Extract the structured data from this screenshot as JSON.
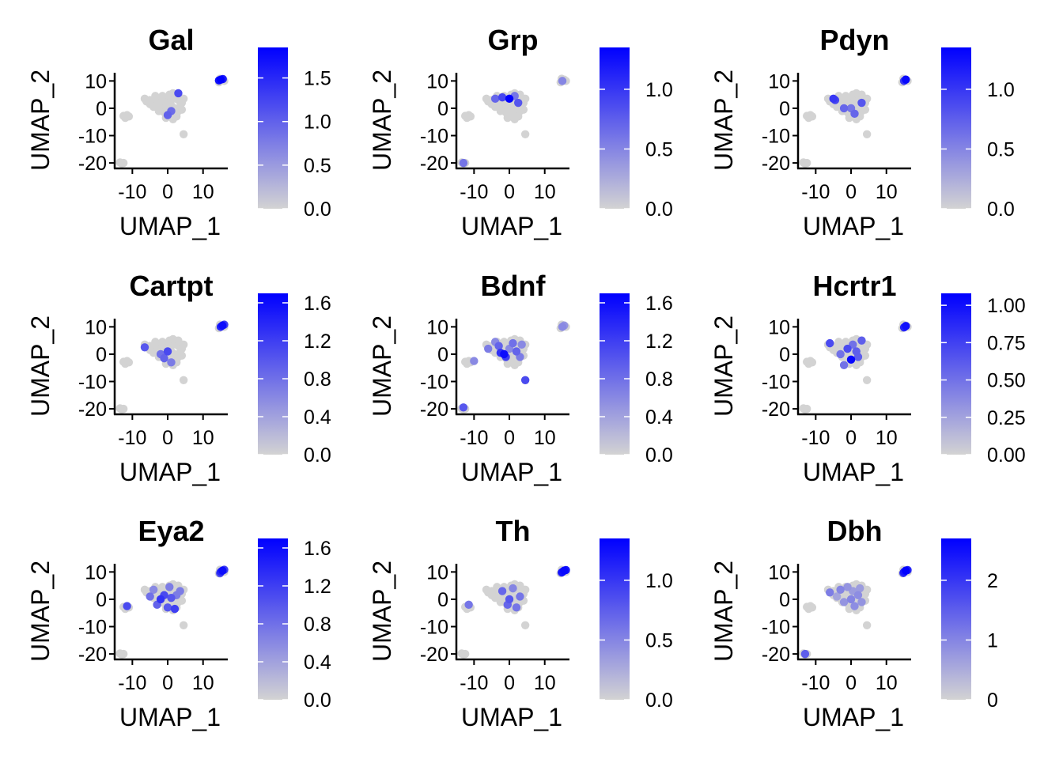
{
  "chart_data": [
    {
      "type": "scatter",
      "title": "Gal",
      "xlabel": "UMAP_1",
      "ylabel": "UMAP_2",
      "xticks": [
        -10,
        0,
        10
      ],
      "yticks": [
        -20,
        -10,
        0,
        10
      ],
      "xlim": [
        -15,
        17
      ],
      "ylim": [
        -22,
        13
      ],
      "colorbar": {
        "min": 0,
        "max": 1.85,
        "ticks": [
          0.0,
          0.5,
          1.0,
          1.5
        ],
        "tick_labels": [
          "0.0",
          "0.5",
          "1.0",
          "1.5"
        ],
        "low_color": "#d3d3d3",
        "high_color": "#0000ff"
      },
      "expressing_points": [
        {
          "x": 3,
          "y": 5.5,
          "v": 1.2
        },
        {
          "x": 0,
          "y": -2.5,
          "v": 1.0
        },
        {
          "x": 1,
          "y": -1,
          "v": 0.9
        },
        {
          "x": 15,
          "y": 10.5,
          "v": 1.85
        },
        {
          "x": 14.5,
          "y": 10.2,
          "v": 1.7
        },
        {
          "x": 15.6,
          "y": 10.7,
          "v": 1.6
        }
      ]
    },
    {
      "type": "scatter",
      "title": "Grp",
      "xlabel": "UMAP_1",
      "ylabel": "UMAP_2",
      "xticks": [
        -10,
        0,
        10
      ],
      "yticks": [
        -20,
        -10,
        0,
        10
      ],
      "xlim": [
        -15,
        17
      ],
      "ylim": [
        -22,
        13
      ],
      "colorbar": {
        "min": 0,
        "max": 1.35,
        "ticks": [
          0.0,
          0.5,
          1.0
        ],
        "tick_labels": [
          "0.0",
          "0.5",
          "1.0"
        ],
        "low_color": "#d3d3d3",
        "high_color": "#0000ff"
      },
      "expressing_points": [
        {
          "x": 0,
          "y": 3.5,
          "v": 1.35
        },
        {
          "x": -2,
          "y": 4,
          "v": 0.9
        },
        {
          "x": 2.5,
          "y": 2,
          "v": 0.8
        },
        {
          "x": -4,
          "y": 3.5,
          "v": 0.7
        },
        {
          "x": 1.5,
          "y": 4.5,
          "v": 0.6
        },
        {
          "x": -13,
          "y": -20,
          "v": 0.6
        },
        {
          "x": 15,
          "y": 10,
          "v": 0.5
        }
      ]
    },
    {
      "type": "scatter",
      "title": "Pdyn",
      "xlabel": "UMAP_1",
      "ylabel": "UMAP_2",
      "xticks": [
        -10,
        0,
        10
      ],
      "yticks": [
        -20,
        -10,
        0,
        10
      ],
      "xlim": [
        -15,
        17
      ],
      "ylim": [
        -22,
        13
      ],
      "colorbar": {
        "min": 0,
        "max": 1.35,
        "ticks": [
          0.0,
          0.5,
          1.0
        ],
        "tick_labels": [
          "0.0",
          "0.5",
          "1.0"
        ],
        "low_color": "#d3d3d3",
        "high_color": "#0000ff"
      },
      "expressing_points": [
        {
          "x": -5,
          "y": 3.5,
          "v": 1.0
        },
        {
          "x": -4.5,
          "y": 3,
          "v": 0.9
        },
        {
          "x": 3,
          "y": 2,
          "v": 0.8
        },
        {
          "x": -2,
          "y": 0,
          "v": 0.7
        },
        {
          "x": 0,
          "y": 0,
          "v": 0.6
        },
        {
          "x": 1,
          "y": -2,
          "v": 0.7
        },
        {
          "x": 15.5,
          "y": 10.5,
          "v": 1.3
        },
        {
          "x": 15,
          "y": 10,
          "v": 1.0
        }
      ]
    },
    {
      "type": "scatter",
      "title": "Cartpt",
      "xlabel": "UMAP_1",
      "ylabel": "UMAP_2",
      "xticks": [
        -10,
        0,
        10
      ],
      "yticks": [
        -20,
        -10,
        0,
        10
      ],
      "xlim": [
        -15,
        17
      ],
      "ylim": [
        -22,
        13
      ],
      "colorbar": {
        "min": 0,
        "max": 1.7,
        "ticks": [
          0.0,
          0.4,
          0.8,
          1.2,
          1.6
        ],
        "tick_labels": [
          "0.0",
          "0.4",
          "0.8",
          "1.2",
          "1.6"
        ],
        "low_color": "#d3d3d3",
        "high_color": "#0000ff"
      },
      "expressing_points": [
        {
          "x": -6.5,
          "y": 2.5,
          "v": 1.0
        },
        {
          "x": -2,
          "y": 0,
          "v": 0.8
        },
        {
          "x": 0,
          "y": 1,
          "v": 1.1
        },
        {
          "x": -1,
          "y": -1.5,
          "v": 0.9
        },
        {
          "x": 1,
          "y": -3,
          "v": 0.7
        },
        {
          "x": 15.5,
          "y": 10.5,
          "v": 1.6
        },
        {
          "x": 15,
          "y": 10,
          "v": 1.4
        },
        {
          "x": 16,
          "y": 10.8,
          "v": 1.2
        }
      ]
    },
    {
      "type": "scatter",
      "title": "Bdnf",
      "xlabel": "UMAP_1",
      "ylabel": "UMAP_2",
      "xticks": [
        -10,
        0,
        10
      ],
      "yticks": [
        -20,
        -10,
        0,
        10
      ],
      "xlim": [
        -15,
        17
      ],
      "ylim": [
        -22,
        13
      ],
      "colorbar": {
        "min": 0,
        "max": 1.7,
        "ticks": [
          0.0,
          0.4,
          0.8,
          1.2,
          1.6
        ],
        "tick_labels": [
          "0.0",
          "0.4",
          "0.8",
          "1.2",
          "1.6"
        ],
        "low_color": "#d3d3d3",
        "high_color": "#0000ff"
      },
      "expressing_points": [
        {
          "x": -1.5,
          "y": 0,
          "v": 1.6
        },
        {
          "x": -2.5,
          "y": 0.5,
          "v": 1.3
        },
        {
          "x": -1,
          "y": -1,
          "v": 1.2
        },
        {
          "x": 4.5,
          "y": -9.5,
          "v": 1.1
        },
        {
          "x": -13,
          "y": -19.5,
          "v": 1.0
        },
        {
          "x": -3,
          "y": 3,
          "v": 0.9
        },
        {
          "x": 1,
          "y": 4,
          "v": 0.8
        },
        {
          "x": 2,
          "y": 1,
          "v": 0.9
        },
        {
          "x": -6,
          "y": 2,
          "v": 0.7
        },
        {
          "x": -4,
          "y": 4.5,
          "v": 0.6
        },
        {
          "x": 3,
          "y": -1,
          "v": 0.7
        },
        {
          "x": 0,
          "y": 2,
          "v": 0.6
        },
        {
          "x": -10,
          "y": -2.5,
          "v": 0.6
        },
        {
          "x": 3.5,
          "y": 3.5,
          "v": 0.6
        },
        {
          "x": 15,
          "y": 10,
          "v": 0.6
        },
        {
          "x": 15.5,
          "y": 10.5,
          "v": 0.5
        }
      ]
    },
    {
      "type": "scatter",
      "title": "Hcrtr1",
      "xlabel": "UMAP_1",
      "ylabel": "UMAP_2",
      "xticks": [
        -10,
        0,
        10
      ],
      "yticks": [
        -20,
        -10,
        0,
        10
      ],
      "xlim": [
        -15,
        17
      ],
      "ylim": [
        -22,
        13
      ],
      "colorbar": {
        "min": 0,
        "max": 1.08,
        "ticks": [
          0.0,
          0.25,
          0.5,
          0.75,
          1.0
        ],
        "tick_labels": [
          "0.00",
          "0.25",
          "0.50",
          "0.75",
          "1.00"
        ],
        "low_color": "#d3d3d3",
        "high_color": "#0000ff"
      },
      "expressing_points": [
        {
          "x": 0,
          "y": -2,
          "v": 1.05
        },
        {
          "x": 15.5,
          "y": 10.3,
          "v": 1.0
        },
        {
          "x": 15,
          "y": 9.8,
          "v": 0.9
        },
        {
          "x": -6,
          "y": 4,
          "v": 0.7
        },
        {
          "x": 3,
          "y": 5,
          "v": 0.6
        },
        {
          "x": -1,
          "y": 2,
          "v": 0.7
        },
        {
          "x": 1.5,
          "y": 1,
          "v": 0.6
        },
        {
          "x": -3,
          "y": 0,
          "v": 0.5
        },
        {
          "x": 2,
          "y": -1,
          "v": 0.6
        },
        {
          "x": -2,
          "y": -4,
          "v": 0.5
        },
        {
          "x": 0.5,
          "y": 3.5,
          "v": 0.5
        }
      ]
    },
    {
      "type": "scatter",
      "title": "Eya2",
      "xlabel": "UMAP_1",
      "ylabel": "UMAP_2",
      "xticks": [
        -10,
        0,
        10
      ],
      "yticks": [
        -20,
        -10,
        0,
        10
      ],
      "xlim": [
        -15,
        17
      ],
      "ylim": [
        -22,
        13
      ],
      "colorbar": {
        "min": 0,
        "max": 1.7,
        "ticks": [
          0.0,
          0.4,
          0.8,
          1.2,
          1.6
        ],
        "tick_labels": [
          "0.0",
          "0.4",
          "0.8",
          "1.2",
          "1.6"
        ],
        "low_color": "#d3d3d3",
        "high_color": "#0000ff"
      },
      "expressing_points": [
        {
          "x": -2,
          "y": 0,
          "v": 1.3
        },
        {
          "x": -1,
          "y": 1.5,
          "v": 1.1
        },
        {
          "x": 2,
          "y": -3.5,
          "v": 1.2
        },
        {
          "x": 0,
          "y": -3,
          "v": 1.0
        },
        {
          "x": -3,
          "y": -2,
          "v": 0.9
        },
        {
          "x": 1,
          "y": 0.5,
          "v": 1.0
        },
        {
          "x": -5,
          "y": 1,
          "v": 0.8
        },
        {
          "x": -11.5,
          "y": -2.5,
          "v": 1.1
        },
        {
          "x": 3.5,
          "y": 3,
          "v": 0.7
        },
        {
          "x": 0.5,
          "y": 4.5,
          "v": 0.7
        },
        {
          "x": -4,
          "y": 3.5,
          "v": 0.6
        },
        {
          "x": 2.5,
          "y": 1.5,
          "v": 0.7
        },
        {
          "x": 15.5,
          "y": 10.5,
          "v": 1.6
        },
        {
          "x": 15,
          "y": 10,
          "v": 1.4
        },
        {
          "x": 16,
          "y": 10.8,
          "v": 1.2
        },
        {
          "x": 14.8,
          "y": 9.5,
          "v": 1.0
        }
      ]
    },
    {
      "type": "scatter",
      "title": "Th",
      "xlabel": "UMAP_1",
      "ylabel": "UMAP_2",
      "xticks": [
        -10,
        0,
        10
      ],
      "yticks": [
        -20,
        -10,
        0,
        10
      ],
      "xlim": [
        -15,
        17
      ],
      "ylim": [
        -22,
        13
      ],
      "colorbar": {
        "min": 0,
        "max": 1.35,
        "ticks": [
          0.0,
          0.5,
          1.0
        ],
        "tick_labels": [
          "0.0",
          "0.5",
          "1.0"
        ],
        "low_color": "#d3d3d3",
        "high_color": "#0000ff"
      },
      "expressing_points": [
        {
          "x": 15.5,
          "y": 10.5,
          "v": 1.3
        },
        {
          "x": 15,
          "y": 10,
          "v": 1.25
        },
        {
          "x": 16,
          "y": 10.7,
          "v": 1.2
        },
        {
          "x": 14.8,
          "y": 9.8,
          "v": 1.1
        },
        {
          "x": 0,
          "y": 0,
          "v": 0.8
        },
        {
          "x": -2,
          "y": 3,
          "v": 0.7
        },
        {
          "x": 3,
          "y": 1,
          "v": 0.6
        },
        {
          "x": -0.5,
          "y": -2,
          "v": 0.7
        },
        {
          "x": 2,
          "y": -3,
          "v": 0.6
        },
        {
          "x": -11.5,
          "y": -2,
          "v": 0.6
        },
        {
          "x": 1,
          "y": 4,
          "v": 0.5
        }
      ]
    },
    {
      "type": "scatter",
      "title": "Dbh",
      "xlabel": "UMAP_1",
      "ylabel": "UMAP_2",
      "xticks": [
        -10,
        0,
        10
      ],
      "yticks": [
        -20,
        -10,
        0,
        10
      ],
      "xlim": [
        -15,
        17
      ],
      "ylim": [
        -22,
        13
      ],
      "colorbar": {
        "min": 0,
        "max": 2.7,
        "ticks": [
          0,
          1,
          2
        ],
        "tick_labels": [
          "0",
          "1",
          "2"
        ],
        "low_color": "#d3d3d3",
        "high_color": "#0000ff"
      },
      "expressing_points": [
        {
          "x": 15.5,
          "y": 10.5,
          "v": 2.7
        },
        {
          "x": 15,
          "y": 10,
          "v": 2.4
        },
        {
          "x": 16,
          "y": 10.7,
          "v": 2.2
        },
        {
          "x": 14.8,
          "y": 9.6,
          "v": 2.0
        },
        {
          "x": -13,
          "y": -20,
          "v": 1.5
        },
        {
          "x": -6,
          "y": 2.5,
          "v": 1.1
        },
        {
          "x": -3,
          "y": 3.5,
          "v": 1.0
        },
        {
          "x": 0,
          "y": 0,
          "v": 1.0
        },
        {
          "x": 2,
          "y": 1.5,
          "v": 0.9
        },
        {
          "x": 1,
          "y": -2.5,
          "v": 0.9
        },
        {
          "x": -1,
          "y": 4.5,
          "v": 0.8
        },
        {
          "x": 3,
          "y": -1,
          "v": 0.8
        },
        {
          "x": -2,
          "y": -1,
          "v": 0.8
        },
        {
          "x": 0.5,
          "y": 3,
          "v": 0.7
        },
        {
          "x": 2.5,
          "y": 4,
          "v": 0.7
        },
        {
          "x": -4,
          "y": 1,
          "v": 0.6
        }
      ]
    }
  ],
  "background_cells": {
    "color": "#d3d3d3",
    "points": [
      {
        "x": -6,
        "y": 2.5
      },
      {
        "x": -5,
        "y": 3
      },
      {
        "x": -4,
        "y": 2
      },
      {
        "x": -3,
        "y": 3.5
      },
      {
        "x": -2,
        "y": 2
      },
      {
        "x": -1,
        "y": 3
      },
      {
        "x": 0,
        "y": 4
      },
      {
        "x": 1,
        "y": 3
      },
      {
        "x": 2,
        "y": 4.5
      },
      {
        "x": 3,
        "y": 3
      },
      {
        "x": 4,
        "y": 2
      },
      {
        "x": 3.5,
        "y": 0.5
      },
      {
        "x": 2,
        "y": 0
      },
      {
        "x": 1,
        "y": 1
      },
      {
        "x": 0,
        "y": 1.5
      },
      {
        "x": -1,
        "y": 0.5
      },
      {
        "x": -2,
        "y": 0
      },
      {
        "x": -3,
        "y": 1
      },
      {
        "x": -4,
        "y": 0.5
      },
      {
        "x": -5,
        "y": 1.5
      },
      {
        "x": -2.5,
        "y": -1
      },
      {
        "x": -1,
        "y": -1.5
      },
      {
        "x": 0,
        "y": -1
      },
      {
        "x": 1,
        "y": -2
      },
      {
        "x": 2,
        "y": -1.5
      },
      {
        "x": 3,
        "y": -1
      },
      {
        "x": 4,
        "y": -0.5
      },
      {
        "x": 0.5,
        "y": -3
      },
      {
        "x": -0.5,
        "y": -3.5
      },
      {
        "x": 1.5,
        "y": -4
      },
      {
        "x": 2.5,
        "y": -3
      },
      {
        "x": -1.5,
        "y": 4.5
      },
      {
        "x": 0.5,
        "y": 5
      },
      {
        "x": 1.5,
        "y": 5.5
      },
      {
        "x": -3.5,
        "y": 4.5
      },
      {
        "x": 3,
        "y": 5
      },
      {
        "x": -6.5,
        "y": 3.5
      },
      {
        "x": 4.5,
        "y": 3.5
      },
      {
        "x": 4.5,
        "y": -9.5
      },
      {
        "x": -11.5,
        "y": -2.5
      },
      {
        "x": -11,
        "y": -3
      },
      {
        "x": -12,
        "y": -3.5
      },
      {
        "x": -12.5,
        "y": -2.8
      },
      {
        "x": -12.5,
        "y": -20
      },
      {
        "x": -13.5,
        "y": -19.8
      },
      {
        "x": -13,
        "y": -20.2
      },
      {
        "x": 14.5,
        "y": 9.5
      },
      {
        "x": 15,
        "y": 10
      },
      {
        "x": 15.5,
        "y": 10.5
      },
      {
        "x": 16,
        "y": 10
      },
      {
        "x": 14.8,
        "y": 10.8
      }
    ]
  }
}
